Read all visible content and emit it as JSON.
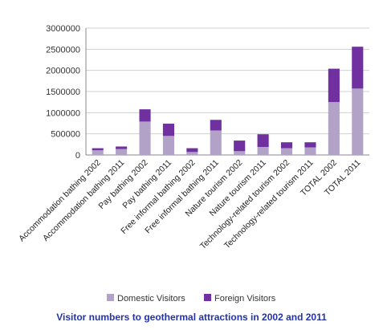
{
  "chart_data": {
    "type": "bar",
    "stacked": true,
    "categories": [
      "Accommodation bathing 2002",
      "Accommodation bathing 2011",
      "Pay bathing 2002",
      "Pay bathing 2011",
      "Free informal bathing 2002",
      "Free informal bathing 2011",
      "Nature tourism 2002",
      "Nature tourism 2011",
      "Technology-related tourism 2002",
      "Technology-related tourism 2011",
      "TOTAL 2002",
      "TOTAL 2011"
    ],
    "series": [
      {
        "name": "Domestic Visitors",
        "color": "#b3a2c7",
        "values": [
          110000,
          140000,
          790000,
          450000,
          70000,
          580000,
          90000,
          190000,
          160000,
          180000,
          1250000,
          1570000
        ]
      },
      {
        "name": "Foreign Visitors",
        "color": "#7030a0",
        "values": [
          50000,
          60000,
          290000,
          290000,
          90000,
          250000,
          250000,
          300000,
          140000,
          120000,
          790000,
          990000
        ]
      }
    ],
    "yticks": [
      "0",
      "500000",
      "1000000",
      "1500000",
      "2000000",
      "2500000",
      "3000000"
    ],
    "ylim": [
      0,
      3000000
    ],
    "grid": true,
    "legend": "bottom",
    "caption": "Visitor numbers to geothermal attractions in 2002 and 2011"
  }
}
